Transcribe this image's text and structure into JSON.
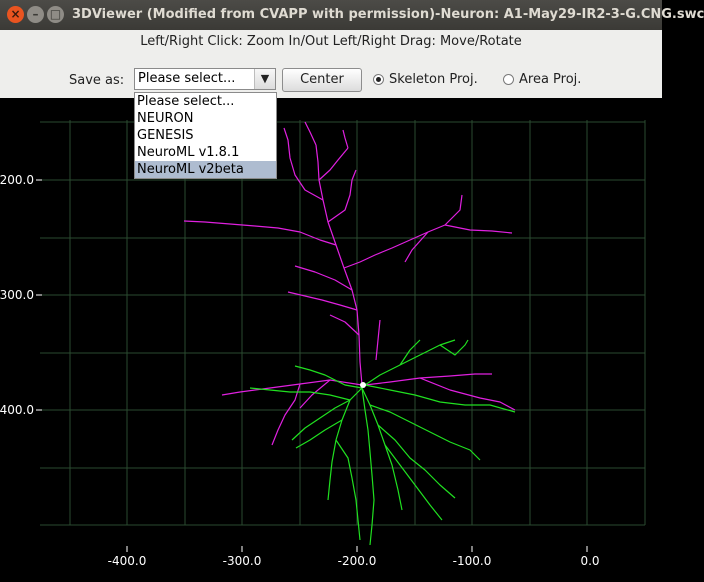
{
  "window": {
    "title": "3DViewer (Modified from CVAPP with permission)-Neuron: A1-May29-IR2-3-G.CNG.swc",
    "buttons": [
      "close",
      "minimize",
      "maximize"
    ]
  },
  "controls": {
    "hint": "Left/Right Click: Zoom In/Out Left/Right Drag: Move/Rotate",
    "save_label": "Save as:",
    "save_selected": "Please select...",
    "center_label": "Center",
    "radio_skeleton": "Skeleton Proj.",
    "radio_area": "Area Proj.",
    "selected_projection": "Skeleton Proj."
  },
  "dropdown": {
    "options": [
      "Please select...",
      "NEURON",
      "GENESIS",
      "NeuroML v1.8.1",
      "NeuroML v2beta"
    ],
    "highlighted": "NeuroML v2beta"
  },
  "plot": {
    "background": "#000000",
    "grid_color": "#2a4a30",
    "axis_color": "#ffffff",
    "x_ticks": [
      "-400.0",
      "-300.0",
      "-200.0",
      "-100.0",
      "0.0"
    ],
    "y_ticks": [
      "200.0",
      "300.0",
      "400.0"
    ],
    "dendrite_apical_color": "#e020e0",
    "dendrite_basal_color": "#20e020",
    "soma_color": "#ffffff"
  }
}
